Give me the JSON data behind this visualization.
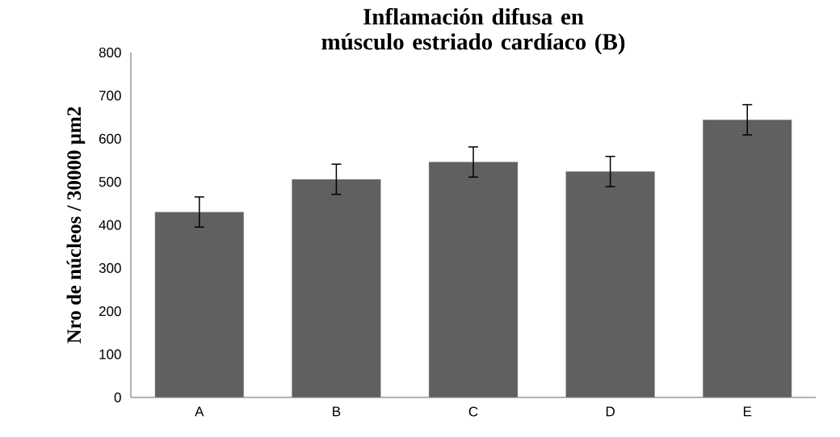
{
  "chart_data": {
    "type": "bar",
    "title": "Inflamación difusa en músculo estriado cardíaco (B)",
    "ylabel": "Nro de núcleos / 30000 µm2",
    "categories": [
      "A",
      "B",
      "C",
      "D",
      "E"
    ],
    "values": [
      430,
      506,
      546,
      524,
      644
    ],
    "errors": [
      35,
      35,
      35,
      35,
      35
    ],
    "color": "#606060",
    "ylim": [
      0,
      800
    ],
    "yticks": [
      0,
      100,
      200,
      300,
      400,
      500,
      600,
      700,
      800
    ],
    "grid": false
  }
}
